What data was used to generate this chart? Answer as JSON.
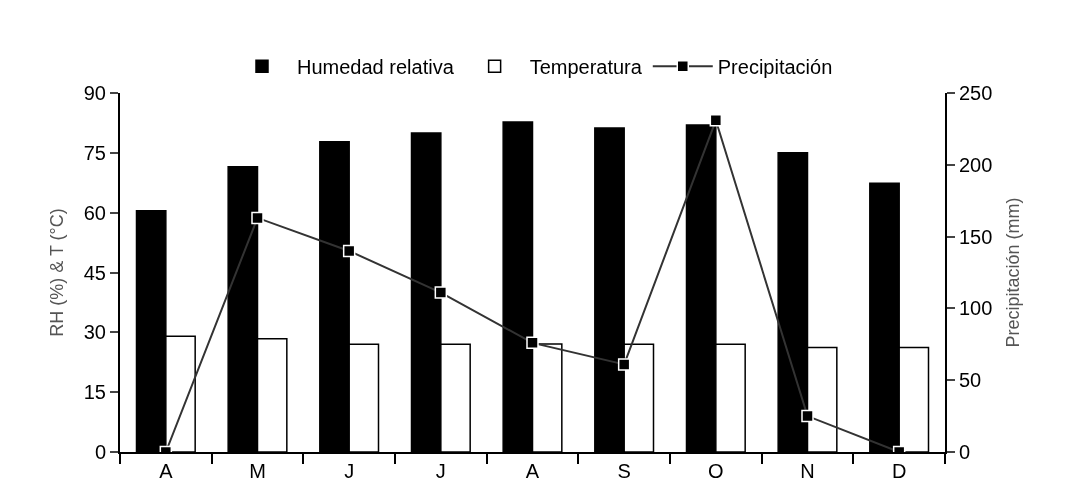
{
  "chart_data": {
    "type": "bar",
    "categories": [
      "A",
      "M",
      "J",
      "J",
      "A",
      "S",
      "O",
      "N",
      "D"
    ],
    "series": [
      {
        "name": "Humedad relativa",
        "color": "#000000",
        "values": [
          60.5,
          71.5,
          77.8,
          80.0,
          82.7,
          81.2,
          82.0,
          75.0,
          67.4
        ]
      },
      {
        "name": "Temperatura",
        "color": "#ffffff",
        "values": [
          29.0,
          28.4,
          27.0,
          27.0,
          27.1,
          27.0,
          27.0,
          26.2,
          26.2
        ]
      },
      {
        "name": "Precipitación",
        "type": "line",
        "axis": "y2",
        "color": "#333333",
        "marker": "square",
        "values": [
          0,
          163,
          140,
          111,
          76,
          61,
          231,
          25,
          0
        ]
      }
    ],
    "ylabel": "RH (%) & T (°C)",
    "y2label": "Precipitación (mm)",
    "ylim": [
      0,
      90
    ],
    "yticks": [
      0,
      15,
      30,
      45,
      60,
      75,
      90
    ],
    "y2lim": [
      0,
      250
    ],
    "y2ticks": [
      0,
      50,
      100,
      150,
      200,
      250
    ],
    "legend": "top"
  }
}
